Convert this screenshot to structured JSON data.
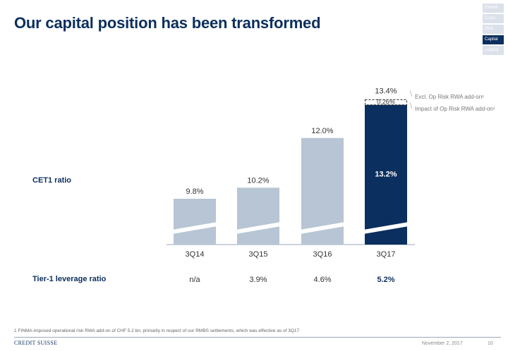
{
  "title": "Our capital position has been transformed",
  "nav": [
    {
      "label": "Growth",
      "active": false
    },
    {
      "label": "Costs",
      "active": false
    },
    {
      "label": "Risk",
      "active": false
    },
    {
      "label": "Capital",
      "active": true
    },
    {
      "label": "Legacy",
      "active": false
    }
  ],
  "rows": {
    "cet1_label": "CET1 ratio",
    "leverage_label": "Tier-1 leverage ratio"
  },
  "legend": {
    "excl": "Excl. Op Risk RWA add-on¹",
    "impact": "Impact of Op Risk RWA add-on¹"
  },
  "chart_data": {
    "type": "bar",
    "categories": [
      "3Q14",
      "3Q15",
      "3Q16",
      "3Q17"
    ],
    "values": [
      9.8,
      10.2,
      12.0,
      13.2
    ],
    "data_labels": [
      "9.8%",
      "10.2%",
      "12.0%",
      "13.2%"
    ],
    "excl_total": 13.4,
    "excl_total_label": "13.4%",
    "add_on": 0.26,
    "add_on_label": "0.26%",
    "highlight_index": 3,
    "colors": {
      "normal": "#b7c5d4",
      "highlight": "#0b2f5e"
    }
  },
  "leverage": {
    "values": [
      "n/a",
      "3.9%",
      "4.6%",
      "5.2%"
    ],
    "highlight_index": 3
  },
  "footnote": "1 FINMA-imposed operational risk RWA add-on of CHF 5.2 bn, primarily in respect of our RMBS settlements, which was effective as of 3Q17",
  "footer": {
    "logo": "CREDIT SUISSE",
    "date": "November 2, 2017",
    "page": "10"
  }
}
